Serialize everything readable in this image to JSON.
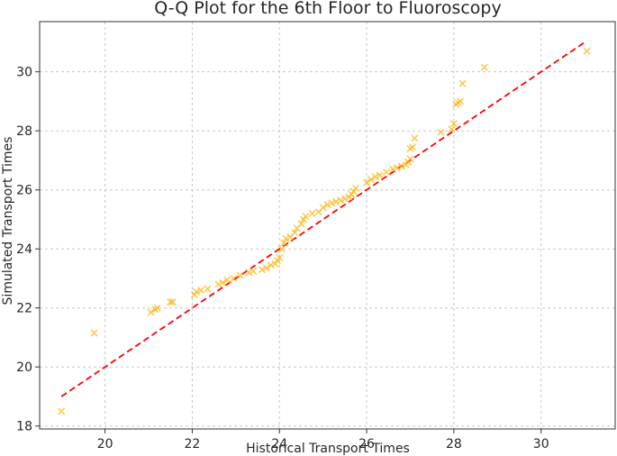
{
  "chart_data": {
    "type": "scatter",
    "title": "Q-Q Plot for the 6th Floor to Fluoroscopy",
    "xlabel": "Historical Transport Times",
    "ylabel": "Simulated Transport Times",
    "xlim": [
      18.5,
      31.7
    ],
    "ylim": [
      17.9,
      31.7
    ],
    "x_ticks": [
      20,
      22,
      24,
      26,
      28,
      30
    ],
    "y_ticks": [
      18,
      20,
      22,
      24,
      26,
      28,
      30
    ],
    "x_tick_labels": [
      "20",
      "22",
      "24",
      "26",
      "28",
      "30"
    ],
    "y_tick_labels": [
      "18",
      "20",
      "22",
      "24",
      "26",
      "28",
      "30"
    ],
    "grid": true,
    "series": [
      {
        "marker": "x",
        "color": "#FFB000",
        "points": [
          [
            19.0,
            18.5
          ],
          [
            19.75,
            21.15
          ],
          [
            21.05,
            21.85
          ],
          [
            21.15,
            21.95
          ],
          [
            21.2,
            22.0
          ],
          [
            21.5,
            22.2
          ],
          [
            21.55,
            22.2
          ],
          [
            22.05,
            22.45
          ],
          [
            22.1,
            22.55
          ],
          [
            22.2,
            22.6
          ],
          [
            22.35,
            22.65
          ],
          [
            22.6,
            22.8
          ],
          [
            22.7,
            22.85
          ],
          [
            22.8,
            22.95
          ],
          [
            22.95,
            23.0
          ],
          [
            23.1,
            23.1
          ],
          [
            23.3,
            23.2
          ],
          [
            23.4,
            23.25
          ],
          [
            23.6,
            23.3
          ],
          [
            23.7,
            23.35
          ],
          [
            23.8,
            23.45
          ],
          [
            23.9,
            23.5
          ],
          [
            23.95,
            23.6
          ],
          [
            24.0,
            23.7
          ],
          [
            24.05,
            24.0
          ],
          [
            24.1,
            24.2
          ],
          [
            24.15,
            24.35
          ],
          [
            24.25,
            24.4
          ],
          [
            24.35,
            24.55
          ],
          [
            24.4,
            24.7
          ],
          [
            24.5,
            24.85
          ],
          [
            24.55,
            25.0
          ],
          [
            24.6,
            25.1
          ],
          [
            24.75,
            25.2
          ],
          [
            24.9,
            25.25
          ],
          [
            25.0,
            25.4
          ],
          [
            25.1,
            25.5
          ],
          [
            25.2,
            25.55
          ],
          [
            25.3,
            25.6
          ],
          [
            25.4,
            25.65
          ],
          [
            25.5,
            25.7
          ],
          [
            25.6,
            25.75
          ],
          [
            25.65,
            25.85
          ],
          [
            25.7,
            25.95
          ],
          [
            25.75,
            26.05
          ],
          [
            26.0,
            26.25
          ],
          [
            26.1,
            26.35
          ],
          [
            26.2,
            26.45
          ],
          [
            26.3,
            26.5
          ],
          [
            26.45,
            26.6
          ],
          [
            26.6,
            26.7
          ],
          [
            26.7,
            26.75
          ],
          [
            26.8,
            26.8
          ],
          [
            26.9,
            26.85
          ],
          [
            26.95,
            26.95
          ],
          [
            27.0,
            27.05
          ],
          [
            27.0,
            27.4
          ],
          [
            27.05,
            27.45
          ],
          [
            27.1,
            27.75
          ],
          [
            27.7,
            27.95
          ],
          [
            27.95,
            28.05
          ],
          [
            28.0,
            28.25
          ],
          [
            28.05,
            28.9
          ],
          [
            28.1,
            28.95
          ],
          [
            28.15,
            29.0
          ],
          [
            28.2,
            29.6
          ],
          [
            28.7,
            30.15
          ],
          [
            31.05,
            30.7
          ]
        ]
      },
      {
        "type": "line",
        "style": "dashed",
        "color": "#ff0000",
        "x": [
          19.0,
          31.0
        ],
        "y": [
          19.0,
          31.0
        ]
      }
    ]
  }
}
